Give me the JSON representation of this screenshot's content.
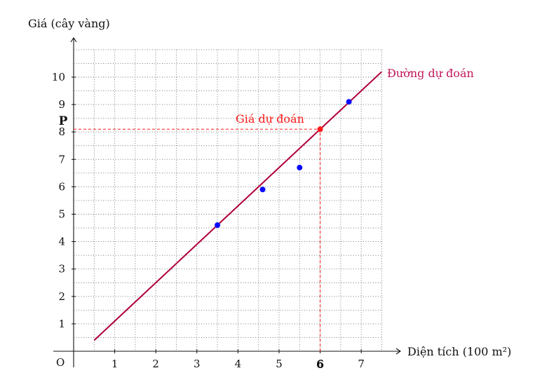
{
  "chart_data": {
    "type": "scatter",
    "xlabel": "Diện tích (100 m²)",
    "ylabel": "Giá (cây vàng)",
    "origin_label": "O",
    "xlim": [
      0,
      8
    ],
    "ylim": [
      0,
      11
    ],
    "xticks": [
      "1",
      "2",
      "3",
      "4",
      "5",
      "6",
      "7"
    ],
    "yticks": [
      "1",
      "2",
      "3",
      "4",
      "5",
      "6",
      "7",
      "8",
      "9",
      "10"
    ],
    "grid": "dotted, every 0.5 units",
    "series": [
      {
        "type": "scatter",
        "points": [
          {
            "x": 3.5,
            "y": 4.6
          },
          {
            "x": 4.6,
            "y": 5.9
          },
          {
            "x": 5.5,
            "y": 6.7
          },
          {
            "x": 6.7,
            "y": 9.1
          }
        ]
      },
      {
        "type": "line",
        "name": "Đường dự đoán",
        "from": {
          "x": 0.5,
          "y": 0.4
        },
        "to": {
          "x": 7.5,
          "y": 10.2
        }
      }
    ],
    "prediction": {
      "x": 6,
      "y": 8.1,
      "x_label": "6",
      "y_label": "P",
      "point_label": "Giá dự đoán"
    }
  },
  "colors": {
    "axis": "#111111",
    "grid": "#6b6b6b",
    "points": "#0a0aff",
    "regression_line": "#b0003a",
    "line_label": "#c2185b",
    "prediction": "#ff1a1a"
  }
}
